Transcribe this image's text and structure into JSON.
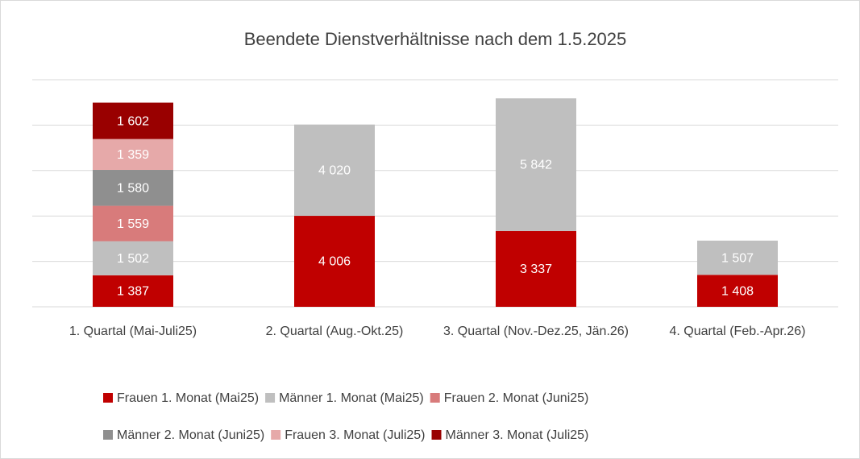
{
  "chart_data": {
    "type": "stacked_bar",
    "title": "Beendete Dienstverhältnisse nach dem 1.5.2025",
    "categories": [
      "1. Quartal (Mai-Juli25)",
      "2. Quartal (Aug.-Okt.25)",
      "3. Quartal (Nov.-Dez.25, Jän.26)",
      "4. Quartal (Feb.-Apr.26)"
    ],
    "series": [
      {
        "name": "Frauen 1. Monat (Mai25)",
        "color": "#c00000",
        "values": [
          1387,
          4006,
          3337,
          1408
        ],
        "value_labels": [
          "1 387",
          "4 006",
          "3 337",
          "1 408"
        ]
      },
      {
        "name": "Männer 1. Monat (Mai25)",
        "color": "#bfbfbf",
        "values": [
          1502,
          4020,
          5842,
          1507
        ],
        "value_labels": [
          "1 502",
          "4 020",
          "5 842",
          "1 507"
        ]
      },
      {
        "name": "Frauen 2. Monat (Juni25)",
        "color": "#d87b7b",
        "values": [
          1559,
          null,
          null,
          null
        ],
        "value_labels": [
          "1 559",
          null,
          null,
          null
        ]
      },
      {
        "name": "Männer 2. Monat (Juni25)",
        "color": "#8f8f8f",
        "values": [
          1580,
          null,
          null,
          null
        ],
        "value_labels": [
          "1 580",
          null,
          null,
          null
        ]
      },
      {
        "name": "Frauen 3. Monat (Juli25)",
        "color": "#e6a9a9",
        "values": [
          1359,
          null,
          null,
          null
        ],
        "value_labels": [
          "1 359",
          null,
          null,
          null
        ]
      },
      {
        "name": "Männer 3. Monat (Juli25)",
        "color": "#990000",
        "values": [
          1602,
          null,
          null,
          null
        ],
        "value_labels": [
          "1 602",
          null,
          null,
          null
        ]
      }
    ],
    "ylim": [
      0,
      10000
    ],
    "yticks": [
      0,
      2000,
      4000,
      6000,
      8000,
      10000
    ],
    "grid": true,
    "legend": "bottom"
  }
}
